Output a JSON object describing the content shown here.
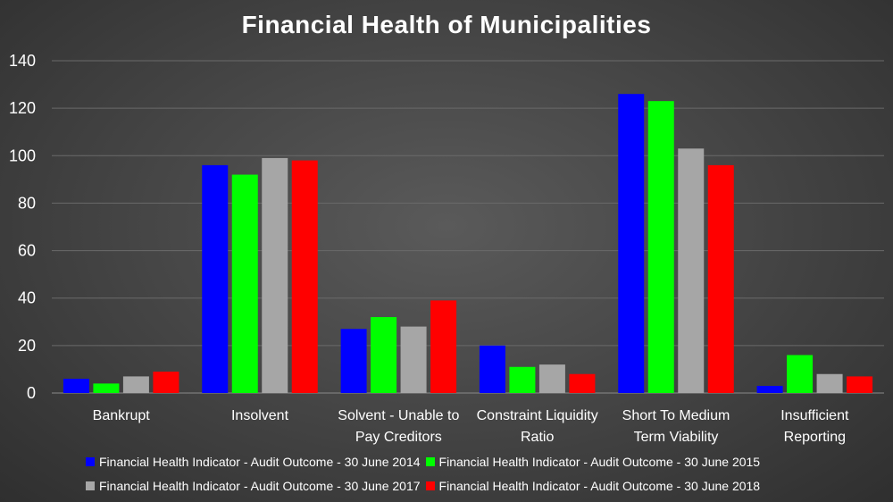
{
  "chart_data": {
    "type": "bar",
    "title": "Financial Health of Municipalities",
    "categories": [
      [
        "Bankrupt"
      ],
      [
        "Insolvent"
      ],
      [
        "Solvent - Unable to",
        "Pay Creditors"
      ],
      [
        "Constraint Liquidity",
        "Ratio"
      ],
      [
        "Short To Medium",
        "Term Viability"
      ],
      [
        "Insufficient",
        "Reporting"
      ]
    ],
    "series": [
      {
        "name": "Financial Health Indicator - Audit Outcome - 30 June 2014",
        "color": "#0000ff",
        "values": [
          6,
          96,
          27,
          20,
          126,
          3
        ]
      },
      {
        "name": "Financial Health Indicator - Audit Outcome - 30 June 2015",
        "color": "#00ff00",
        "values": [
          4,
          92,
          32,
          11,
          123,
          16
        ]
      },
      {
        "name": "Financial Health Indicator - Audit Outcome - 30 June 2017",
        "color": "#a6a6a6",
        "values": [
          7,
          99,
          28,
          12,
          103,
          8
        ]
      },
      {
        "name": "Financial Health Indicator - Audit Outcome - 30 June 2018",
        "color": "#ff0000",
        "values": [
          9,
          98,
          39,
          8,
          96,
          7
        ]
      }
    ],
    "ylim": [
      0,
      140
    ],
    "yticks": [
      0,
      20,
      40,
      60,
      80,
      100,
      120,
      140
    ],
    "grid": true,
    "legend_position": "bottom"
  }
}
